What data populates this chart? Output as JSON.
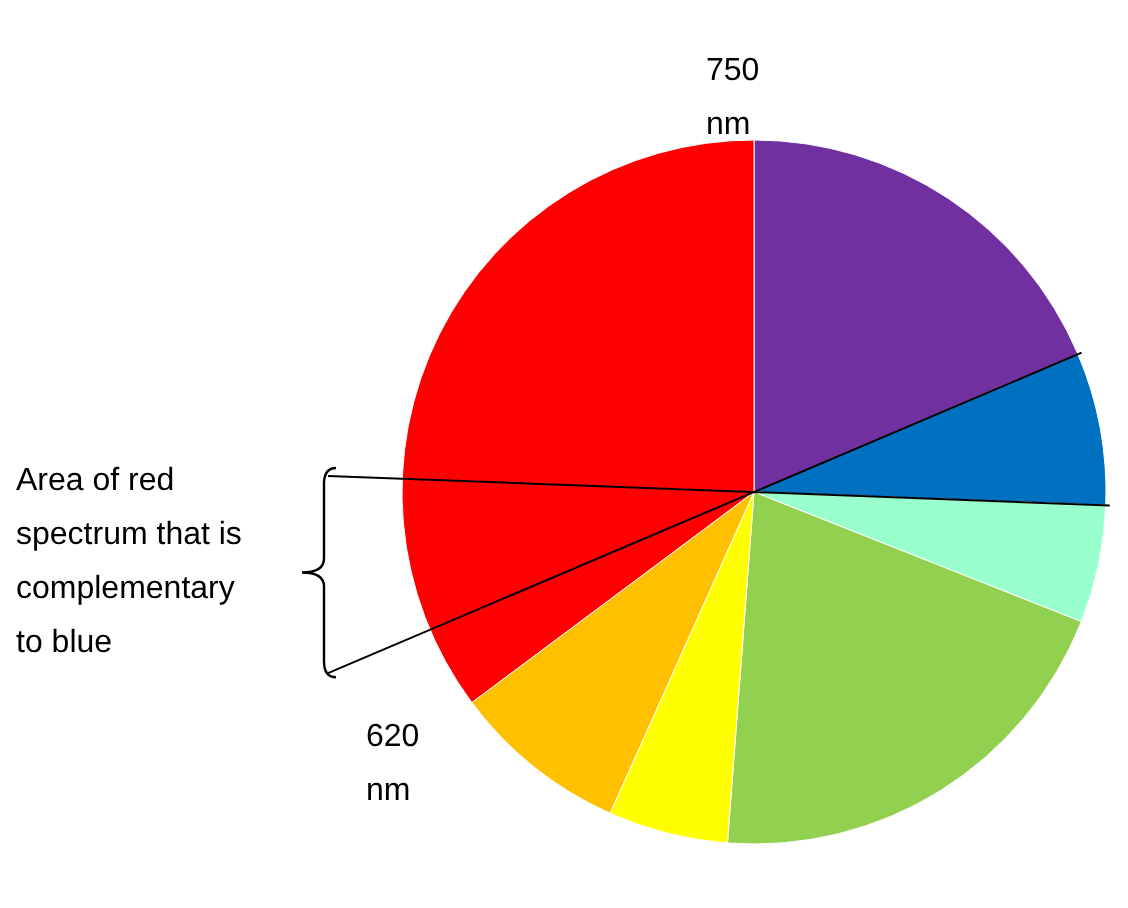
{
  "chart_data": {
    "type": "pie",
    "categories": [
      null,
      null,
      null,
      null,
      null,
      null,
      null
    ],
    "values": [
      18.6,
      7.0,
      5.4,
      20.2,
      5.5,
      8.1,
      35.2
    ],
    "colors": [
      "#7030a0",
      "#0070c0",
      "#99ffcc",
      "#92d050",
      "#ffff00",
      "#ffc000",
      "#ff0000"
    ],
    "annotations": [
      "750 nm",
      "620 nm",
      "Area of red spectrum that is complementary to blue"
    ]
  }
}
